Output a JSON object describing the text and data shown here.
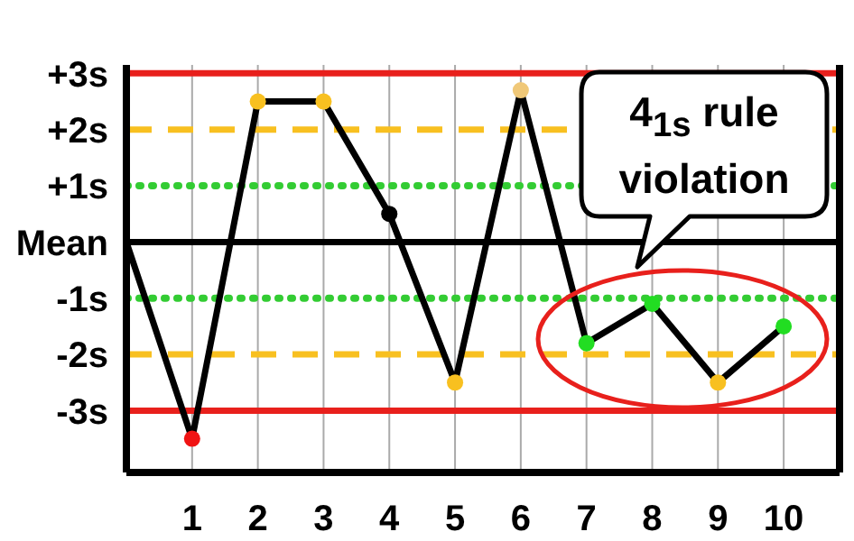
{
  "chart_data": {
    "type": "line",
    "xlim": [
      0,
      10.85
    ],
    "xticks": [
      1,
      2,
      3,
      4,
      5,
      6,
      7,
      8,
      9,
      10
    ],
    "ylim": [
      -4.1,
      3.15
    ],
    "yticks": [
      {
        "value": 3,
        "label": "+3s"
      },
      {
        "value": 2,
        "label": "+2s"
      },
      {
        "value": 1,
        "label": "+1s"
      },
      {
        "value": 0,
        "label": "Mean"
      },
      {
        "value": -1,
        "label": "-1s"
      },
      {
        "value": -2,
        "label": "-2s"
      },
      {
        "value": -3,
        "label": "-3s"
      }
    ],
    "grid": "x",
    "series": [
      {
        "color": "#000000",
        "marker": "none",
        "x": [
          0,
          1,
          2,
          3,
          4,
          5,
          6,
          7,
          8,
          9,
          10
        ],
        "values": [
          0,
          -3.5,
          2.5,
          2.5,
          0.5,
          -2.5,
          2.7,
          -1.8,
          -1.1,
          -2.5,
          -1.5
        ]
      },
      {
        "type": "scatter",
        "marker": "circle",
        "x": [
          1,
          2,
          3,
          4,
          5,
          6,
          7,
          8,
          9,
          10
        ],
        "values": [
          -3.5,
          2.5,
          2.5,
          0.5,
          -2.5,
          2.7,
          -1.8,
          -1.1,
          -2.5,
          -1.5
        ],
        "colors": [
          "#f01414",
          "#f8c020",
          "#f8c020",
          "#000000",
          "#f8c020",
          "#f0c878",
          "#22dd22",
          "#22dd22",
          "#f8c020",
          "#22dd22"
        ]
      }
    ],
    "ref_lines": [
      {
        "axis": "y",
        "value": 3,
        "color": "#e8201c",
        "line_style": "solid"
      },
      {
        "axis": "y",
        "value": 2,
        "color": "#f8c020",
        "line_style": "dashed"
      },
      {
        "axis": "y",
        "value": 1,
        "color": "#33cc33",
        "line_style": "dotted"
      },
      {
        "axis": "y",
        "value": 0,
        "color": "#000000",
        "line_style": "solid"
      },
      {
        "axis": "y",
        "value": -1,
        "color": "#33cc33",
        "line_style": "dotted"
      },
      {
        "axis": "y",
        "value": -2,
        "color": "#f8c020",
        "line_style": "dashed"
      },
      {
        "axis": "y",
        "value": -3,
        "color": "#e8201c",
        "line_style": "solid"
      }
    ],
    "annotations": [
      "4$_{1s}$ rule violation"
    ]
  }
}
